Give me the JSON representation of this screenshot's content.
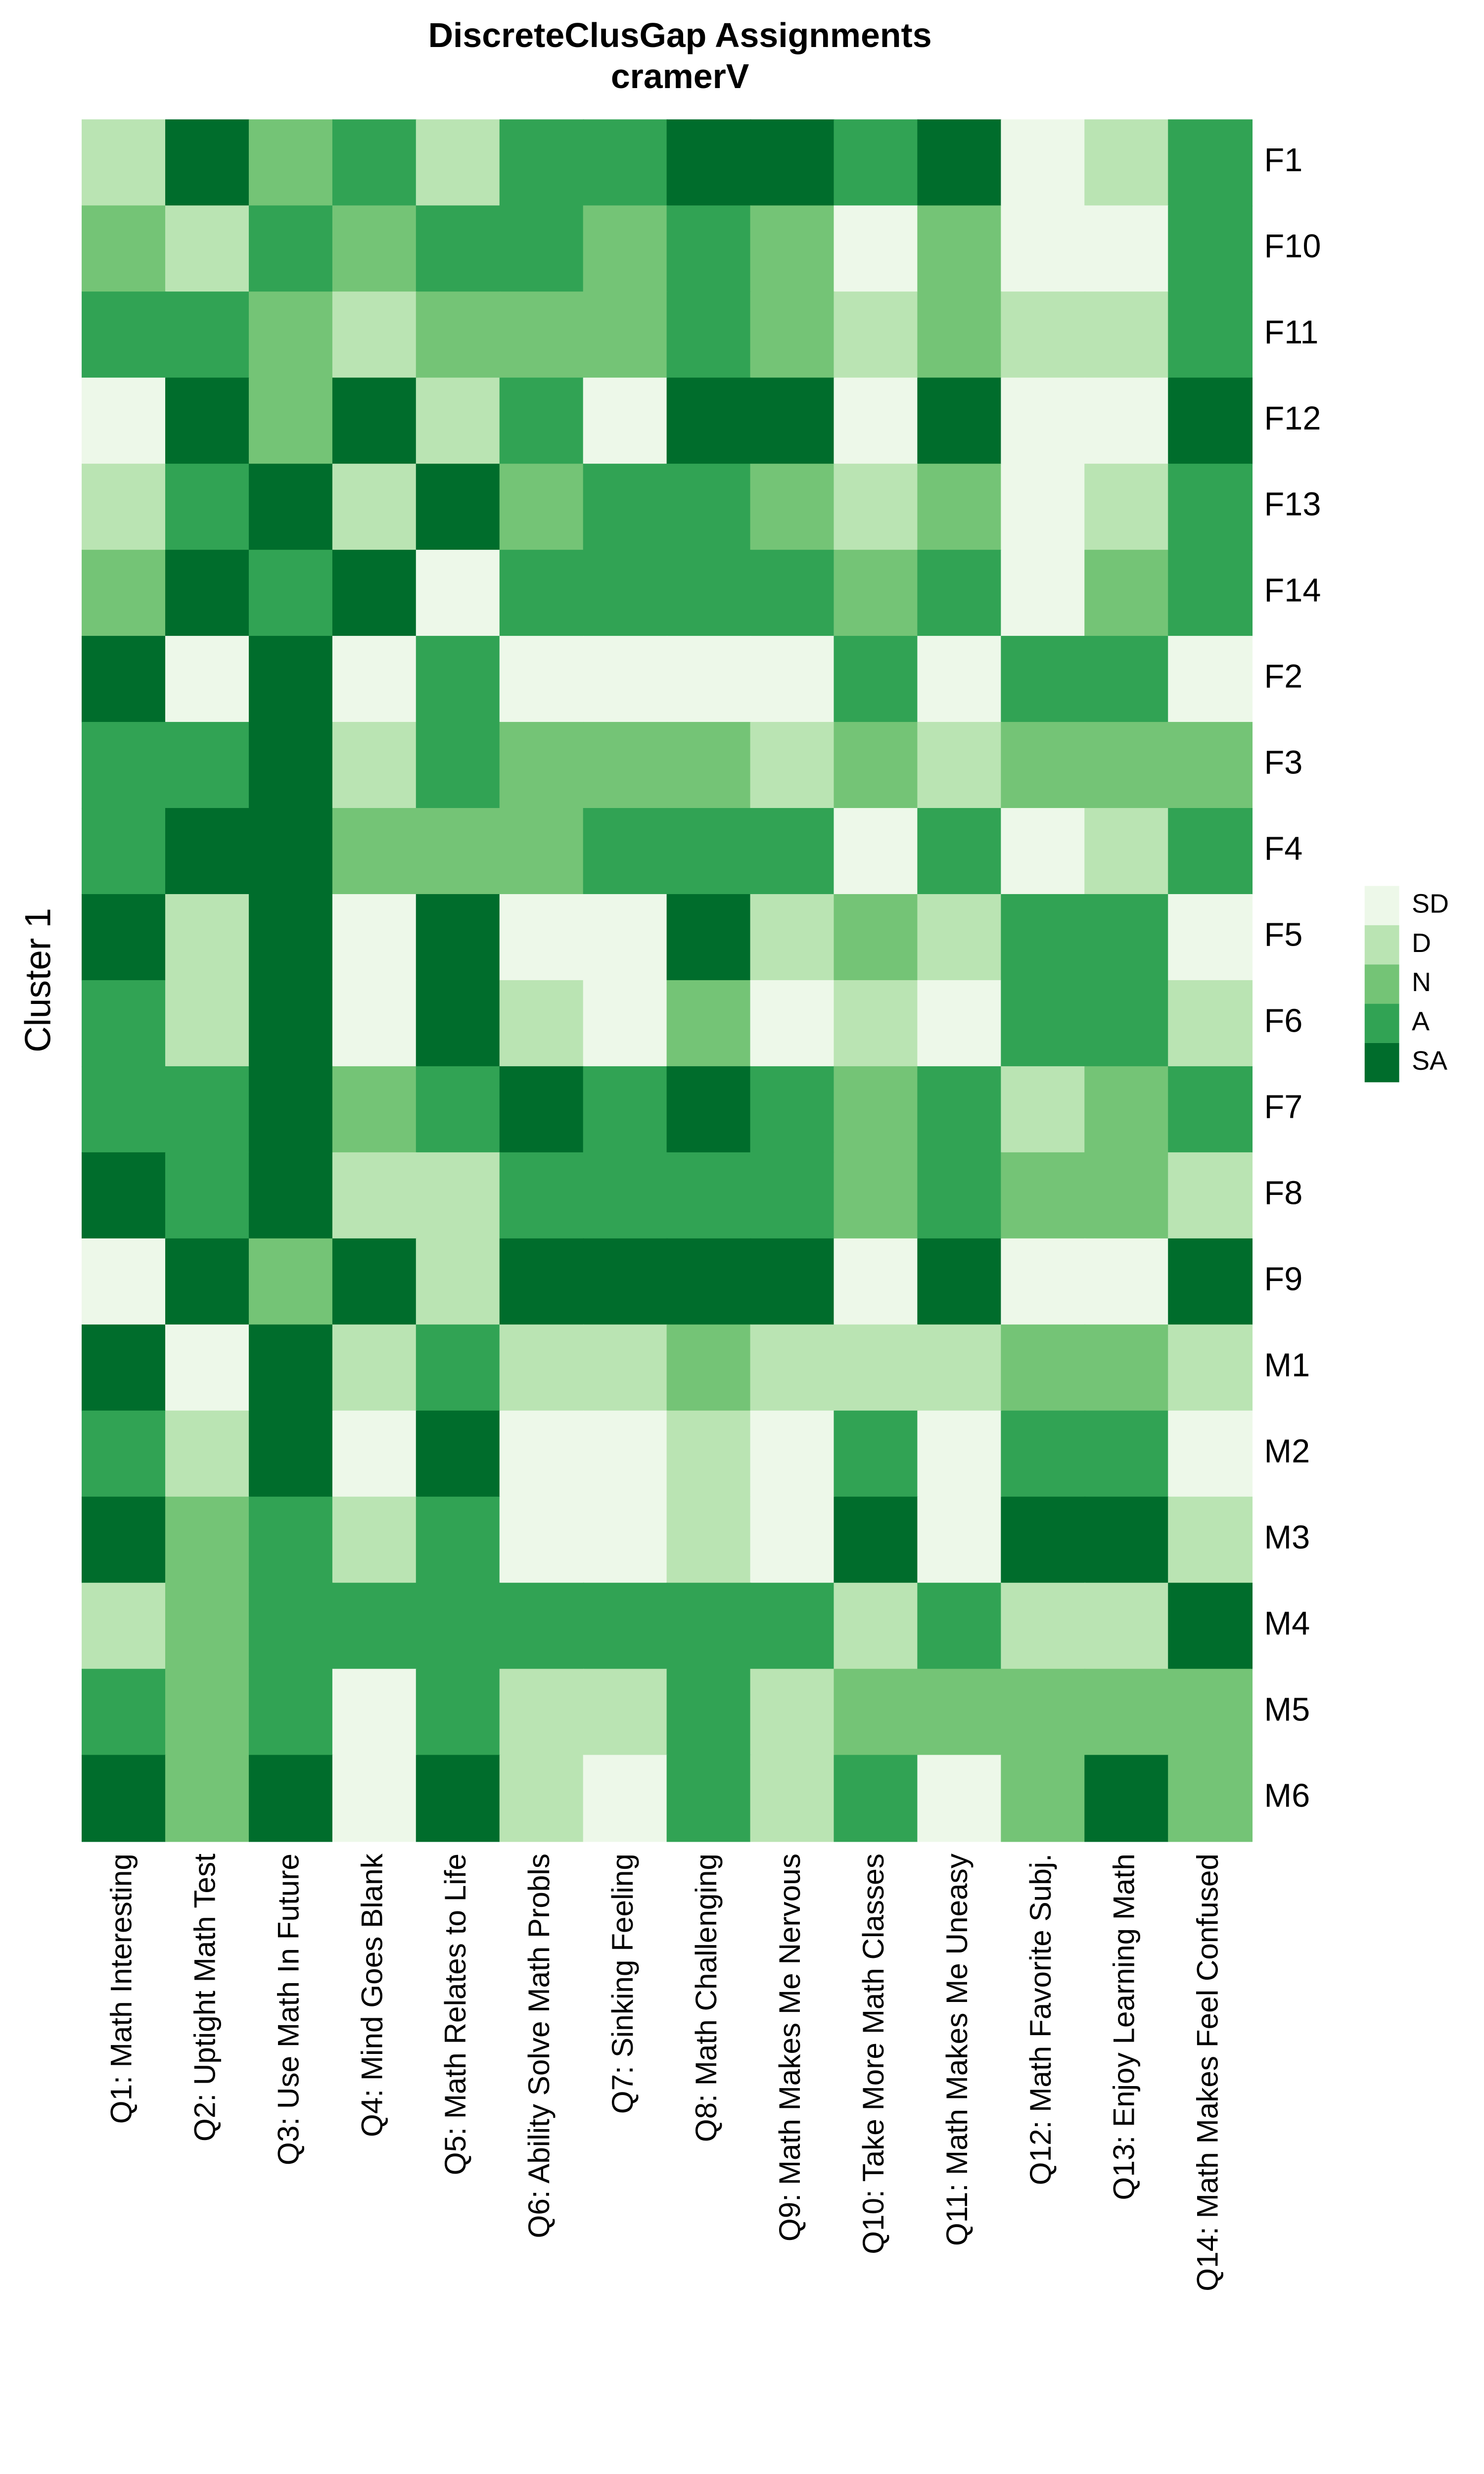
{
  "chart_data": {
    "type": "heatmap",
    "title": [
      "DiscreteClusGap Assignments",
      "cramerV"
    ],
    "y_label": "Cluster 1",
    "rows": [
      "F1",
      "F10",
      "F11",
      "F12",
      "F13",
      "F14",
      "F2",
      "F3",
      "F4",
      "F5",
      "F6",
      "F7",
      "F8",
      "F9",
      "M1",
      "M2",
      "M3",
      "M4",
      "M5",
      "M6"
    ],
    "columns": [
      "Q1: Math Interesting",
      "Q2: Uptight Math Test",
      "Q3: Use Math In Future",
      "Q4: Mind Goes Blank",
      "Q5: Math Relates to Life",
      "Q6: Ability Solve Math Probls",
      "Q7: Sinking Feeling",
      "Q8: Math Challenging",
      "Q9: Math Makes Me Nervous",
      "Q10: Take More Math Classes",
      "Q11: Math Makes Me Uneasy",
      "Q12: Math Favorite Subj.",
      "Q13: Enjoy Learning Math",
      "Q14: Math Makes Feel Confused"
    ],
    "levels": [
      {
        "value": 1,
        "label": "SD",
        "color": "#edf8e9"
      },
      {
        "value": 2,
        "label": "D",
        "color": "#bae4b3"
      },
      {
        "value": 3,
        "label": "N",
        "color": "#74c476"
      },
      {
        "value": 4,
        "label": "A",
        "color": "#31a354"
      },
      {
        "value": 5,
        "label": "SA",
        "color": "#006d2c"
      }
    ],
    "values": [
      [
        2,
        5,
        3,
        4,
        2,
        4,
        4,
        5,
        5,
        4,
        5,
        1,
        2,
        4
      ],
      [
        3,
        2,
        4,
        3,
        4,
        4,
        3,
        4,
        3,
        1,
        3,
        1,
        1,
        4
      ],
      [
        4,
        4,
        3,
        2,
        3,
        3,
        3,
        4,
        3,
        2,
        3,
        2,
        2,
        4
      ],
      [
        1,
        5,
        3,
        5,
        2,
        4,
        1,
        5,
        5,
        1,
        5,
        1,
        1,
        5
      ],
      [
        2,
        4,
        5,
        2,
        5,
        3,
        4,
        4,
        3,
        2,
        3,
        1,
        2,
        4
      ],
      [
        3,
        5,
        4,
        5,
        1,
        4,
        4,
        4,
        4,
        3,
        4,
        1,
        3,
        4
      ],
      [
        5,
        1,
        5,
        1,
        4,
        1,
        1,
        1,
        1,
        4,
        1,
        4,
        4,
        1
      ],
      [
        4,
        4,
        5,
        2,
        4,
        3,
        3,
        3,
        2,
        3,
        2,
        3,
        3,
        3
      ],
      [
        4,
        5,
        5,
        3,
        3,
        3,
        4,
        4,
        4,
        1,
        4,
        1,
        2,
        4
      ],
      [
        5,
        2,
        5,
        1,
        5,
        1,
        1,
        5,
        2,
        3,
        2,
        4,
        4,
        1
      ],
      [
        4,
        2,
        5,
        1,
        5,
        2,
        1,
        3,
        1,
        2,
        1,
        4,
        4,
        2
      ],
      [
        4,
        4,
        5,
        3,
        4,
        5,
        4,
        5,
        4,
        3,
        4,
        2,
        3,
        4
      ],
      [
        5,
        4,
        5,
        2,
        2,
        4,
        4,
        4,
        4,
        3,
        4,
        3,
        3,
        2
      ],
      [
        1,
        5,
        3,
        5,
        2,
        5,
        5,
        5,
        5,
        1,
        5,
        1,
        1,
        5
      ],
      [
        5,
        1,
        5,
        2,
        4,
        2,
        2,
        3,
        2,
        2,
        2,
        3,
        3,
        2
      ],
      [
        4,
        2,
        5,
        1,
        5,
        1,
        1,
        2,
        1,
        4,
        1,
        4,
        4,
        1
      ],
      [
        5,
        3,
        4,
        2,
        4,
        1,
        1,
        2,
        1,
        5,
        1,
        5,
        5,
        2
      ],
      [
        2,
        3,
        4,
        4,
        4,
        4,
        4,
        4,
        4,
        2,
        4,
        2,
        2,
        5
      ],
      [
        4,
        3,
        4,
        1,
        4,
        2,
        2,
        4,
        2,
        3,
        3,
        3,
        3,
        3
      ],
      [
        5,
        3,
        5,
        1,
        5,
        2,
        1,
        4,
        2,
        4,
        1,
        3,
        5,
        3
      ]
    ]
  }
}
